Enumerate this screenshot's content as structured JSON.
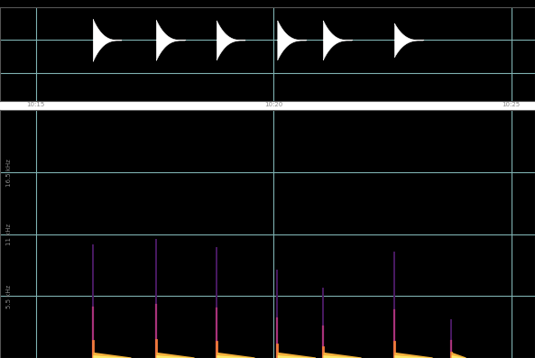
{
  "chart_data": [
    {
      "type": "waveform",
      "xlim": [
        614.25,
        625.5
      ],
      "xticks": [
        {
          "value": 615,
          "label": "10:15"
        },
        {
          "value": 620,
          "label": "10:20"
        },
        {
          "value": 625,
          "label": "10:25"
        }
      ],
      "ylim": [
        -1.3,
        0.7
      ],
      "yticks": [
        {
          "value": -0.7,
          "label": ""
        },
        {
          "value": 0,
          "label": ""
        }
      ],
      "grid": true,
      "tick_labels": "x",
      "color": "#ffffff",
      "events": [
        {
          "time": 616.2,
          "amplitude": 0.45,
          "duration": 0.6
        },
        {
          "time": 617.53,
          "amplitude": 0.43,
          "duration": 0.6
        },
        {
          "time": 618.8,
          "amplitude": 0.42,
          "duration": 0.6
        },
        {
          "time": 620.08,
          "amplitude": 0.42,
          "duration": 0.6
        },
        {
          "time": 621.04,
          "amplitude": 0.42,
          "duration": 0.6
        },
        {
          "time": 622.54,
          "amplitude": 0.36,
          "duration": 0.6
        }
      ]
    },
    {
      "type": "spectrogram",
      "xlim": [
        614.25,
        625.5
      ],
      "xticks": [
        615,
        620,
        625
      ],
      "ylim": [
        0,
        22050
      ],
      "yticks": [
        {
          "value": 5500,
          "label": "5.5 kHz"
        },
        {
          "value": 11000,
          "label": "11 kHz"
        },
        {
          "value": 16500,
          "label": "16.5 kHz"
        }
      ],
      "grid": true,
      "tick_labels": "y",
      "tail_freq": 450,
      "events": [
        {
          "time": 616.2,
          "max_freq": 10000,
          "duration": 0.8
        },
        {
          "time": 617.53,
          "max_freq": 10500,
          "duration": 0.8
        },
        {
          "time": 618.8,
          "max_freq": 9800,
          "duration": 0.8
        },
        {
          "time": 620.08,
          "max_freq": 7800,
          "duration": 0.8
        },
        {
          "time": 621.04,
          "max_freq": 6200,
          "duration": 0.8
        },
        {
          "time": 622.54,
          "max_freq": 9400,
          "duration": 0.8
        },
        {
          "time": 623.74,
          "max_freq": 3400,
          "duration": 0.3
        }
      ]
    }
  ]
}
